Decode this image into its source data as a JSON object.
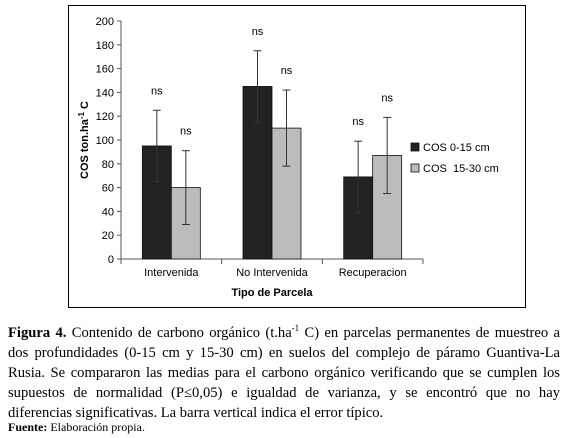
{
  "chart_data": {
    "type": "bar",
    "categories": [
      "Intervenida",
      "No Intervenida",
      "Recuperacion"
    ],
    "series": [
      {
        "name": "COS 0-15 cm",
        "values": [
          95,
          145,
          69
        ],
        "errors": [
          30,
          30,
          30
        ],
        "labels": [
          "ns",
          "ns",
          "ns"
        ],
        "color": "#222222"
      },
      {
        "name": "COS  15-30 cm",
        "values": [
          60,
          110,
          87
        ],
        "errors": [
          31,
          32,
          32
        ],
        "labels": [
          "ns",
          "ns",
          "ns"
        ],
        "color": "#bcbcbc"
      }
    ],
    "ylim": [
      0,
      200
    ],
    "yticks": [
      0,
      20,
      40,
      60,
      80,
      100,
      120,
      140,
      160,
      180,
      200
    ],
    "xlabel": "Tipo de Parcela",
    "ylabel_main": "COS ton.ha",
    "ylabel_sup": "-1",
    "ylabel_tail": " C",
    "grid": false,
    "legend_position": "right"
  },
  "caption": {
    "label": "Figura 4.",
    "text_before_sup": " Contenido de carbono orgánico (t.ha",
    "sup": "-1",
    "text_after_sup": " C) en parcelas permanentes de muestreo a dos profundidades (0-15 cm y 15-30 cm) en suelos del complejo de páramo Guantiva-La Rusia. Se compararon las medias para el carbono orgánico verificando que se cumplen los supuestos de normalidad (P≤0,05) e igualdad de varianza, y se encontró que no hay diferencias significativas. La barra vertical indica el error típico."
  },
  "source": {
    "label": "Fuente:",
    "text": " Elaboración propia."
  }
}
